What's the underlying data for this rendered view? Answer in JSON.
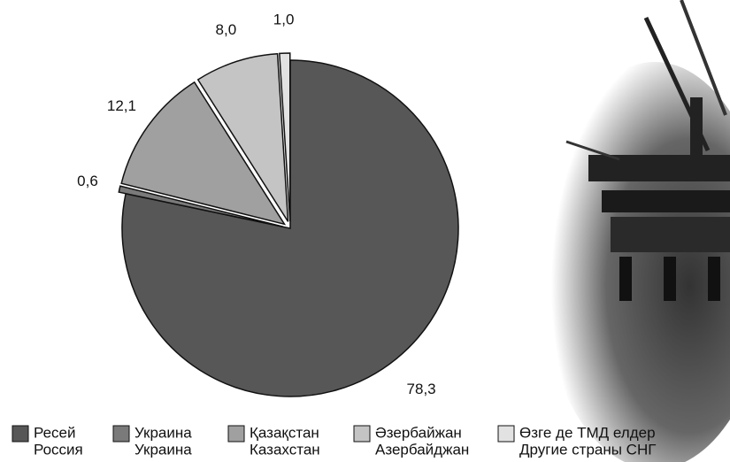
{
  "chart_data": {
    "type": "pie",
    "categories": [
      "Ресей",
      "Украина",
      "Қазақстан",
      "Әзербайжан",
      "Өзге де ТМД елдер"
    ],
    "categories_ru": [
      "Россия",
      "Украина",
      "Казахстан",
      "Азербайджан",
      "Другие страны СНГ"
    ],
    "values": [
      78.3,
      0.6,
      12.1,
      8.0,
      1.0
    ],
    "value_labels": [
      "78,3",
      "0,6",
      "12,1",
      "8,0",
      "1,0"
    ],
    "colors": [
      "#575757",
      "#7a7a7a",
      "#a0a0a0",
      "#c4c4c4",
      "#e2e2e2"
    ],
    "exploded": [
      false,
      true,
      true,
      true,
      true
    ]
  }
}
